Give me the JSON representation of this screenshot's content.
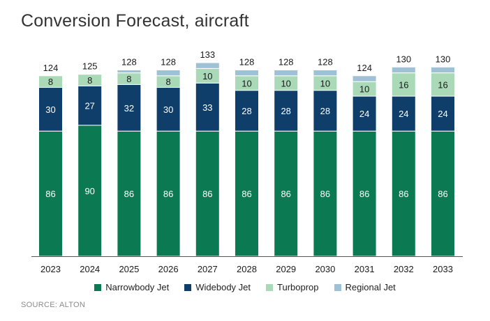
{
  "title": "Conversion Forecast, aircraft",
  "source": "SOURCE: ALTON",
  "chart_data": {
    "type": "bar",
    "stacked": true,
    "categories": [
      "2023",
      "2024",
      "2025",
      "2026",
      "2027",
      "2028",
      "2029",
      "2030",
      "2031",
      "2032",
      "2033"
    ],
    "series": [
      {
        "name": "Narrowbody Jet",
        "color": "#0b7a52",
        "values": [
          86,
          90,
          86,
          86,
          86,
          86,
          86,
          86,
          86,
          86,
          86
        ]
      },
      {
        "name": "Widebody Jet",
        "color": "#0e3e69",
        "values": [
          30,
          27,
          32,
          30,
          33,
          28,
          28,
          28,
          24,
          24,
          24
        ]
      },
      {
        "name": "Turboprop",
        "color": "#a9d9b7",
        "values": [
          8,
          8,
          8,
          8,
          10,
          10,
          10,
          10,
          10,
          16,
          16
        ]
      },
      {
        "name": "Regional Jet",
        "color": "#9ec1d5",
        "values": [
          0,
          0,
          2,
          4,
          4,
          4,
          4,
          4,
          4,
          4,
          4
        ]
      }
    ],
    "totals": [
      124,
      125,
      128,
      128,
      133,
      128,
      128,
      128,
      124,
      130,
      130
    ],
    "ylim": [
      0,
      133
    ],
    "grid": false,
    "legend_position": "bottom"
  }
}
